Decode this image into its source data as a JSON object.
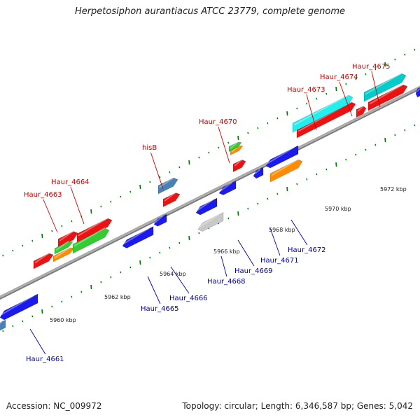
{
  "title": "Herpetosiphon aurantiacus ATCC 23779, complete genome",
  "footer": {
    "accession": "Accession: NC_009972",
    "stats": "Topology: circular; Length: 6,346,587 bp; Genes: 5,042"
  },
  "colors": {
    "top_label": "#cc0000",
    "bottom_label": "#0000aa",
    "axis": "#888888",
    "tick": "#006600"
  },
  "scale_labels": [
    "5960 kbp",
    "5962 kbp",
    "5964 kbp",
    "5966 kbp",
    "5968 kbp",
    "5970 kbp",
    "5972 kbp"
  ],
  "gene_labels_top": [
    "Haur_4663",
    "Haur_4664",
    "hisB",
    "Haur_4670",
    "Haur_4673",
    "Haur_4674",
    "Haur_4675"
  ],
  "gene_labels_bottom": [
    "Haur_4661",
    "Haur_4665",
    "Haur_4666",
    "Haur_4668",
    "Haur_4669",
    "Haur_4671",
    "Haur_4672"
  ]
}
